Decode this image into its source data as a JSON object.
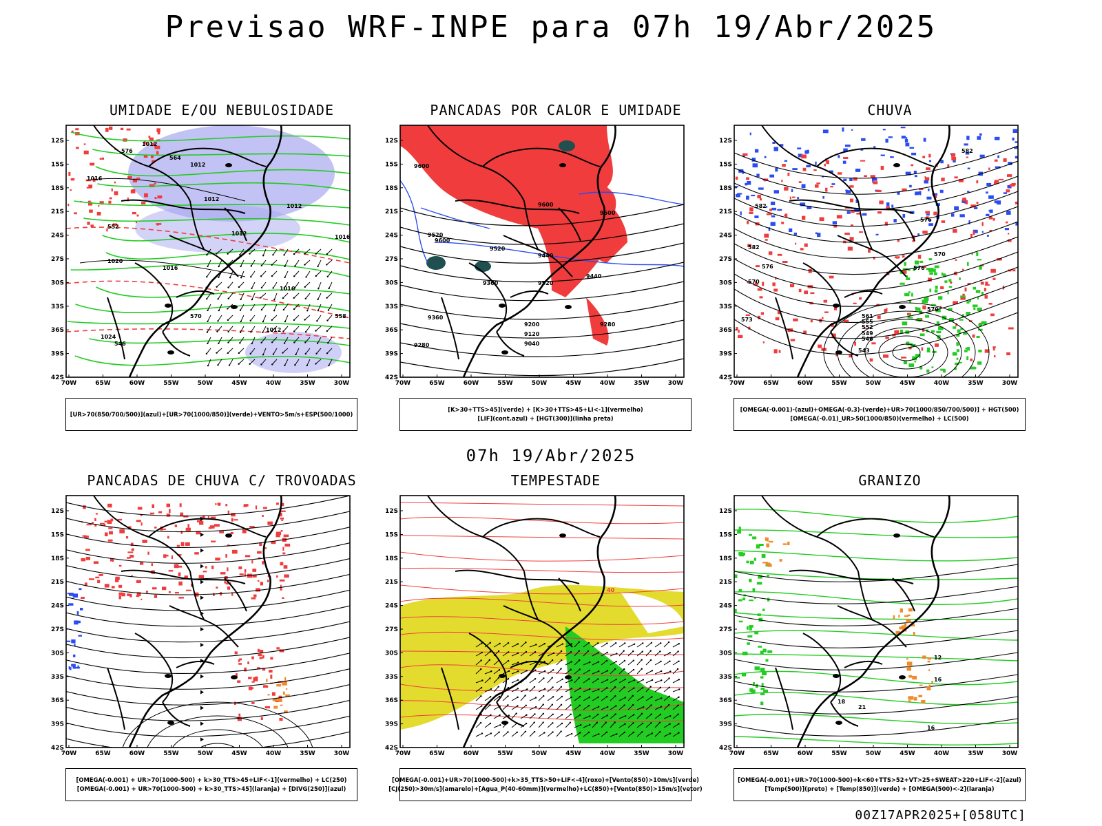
{
  "title": "Previsao WRF-INPE  para 07h 19/Abr/2025",
  "mid_label": "07h 19/Abr/2025",
  "footer": "00Z17APR2025+[058UTC]",
  "axes": {
    "lat_labels": [
      "12S",
      "15S",
      "18S",
      "21S",
      "24S",
      "27S",
      "30S",
      "33S",
      "36S",
      "39S",
      "42S"
    ],
    "lon_labels": [
      "70W",
      "65W",
      "60W",
      "55W",
      "50W",
      "45W",
      "40W",
      "35W",
      "30W"
    ]
  },
  "colors": {
    "red": "#f03c3c",
    "blue": "#2a4cf0",
    "green": "#22cc22",
    "lavender": "#a8a8f0",
    "teal": "#1f4f4f",
    "yellow": "#e3dc2e",
    "orange": "#f08a2a",
    "purple": "#a020f0"
  },
  "panels": [
    {
      "title": "UMIDADE E/OU NEBULOSIDADE",
      "caption": [
        "[UR>70(850/700/500)](azul)+[UR>70(1000/850)](verde)+VENTO>5m/s+ESP(500/1000)"
      ],
      "contour_labels": [
        "1012",
        "1012",
        "1016",
        "1012",
        "1020",
        "1016",
        "1012",
        "1012",
        "1016",
        "1024",
        "1016",
        "1012",
        "576",
        "564",
        "552",
        "546",
        "570",
        "558"
      ]
    },
    {
      "title": "PANCADAS POR CALOR E UMIDADE",
      "caption": [
        "[K>30+TTS>45](verde) + [K>30+TTS>45+LI<-1](vermelho)",
        "[LIF](cont.azul) + [HGT(300)](linha preta)"
      ],
      "contour_labels": [
        "9600",
        "9520",
        "9600",
        "9600",
        "9520",
        "9440",
        "9440",
        "9520",
        "9360",
        "9360",
        "9280",
        "9200",
        "9120",
        "9040",
        "9280",
        "9600"
      ]
    },
    {
      "title": "CHUVA",
      "caption": [
        "[OMEGA(-0.001)-(azul)+OMEGA(-0.3)-(verde)+UR>70(1000/850/700/500)] + HGT(500)",
        "[OMEGA(-0.01)_UR>50(1000/850)(vermelho) + LC(500)"
      ],
      "contour_labels": [
        "582",
        "582",
        "576",
        "570",
        "573",
        "576",
        "570",
        "561",
        "555",
        "552",
        "549",
        "546",
        "543",
        "582",
        "576",
        "570"
      ]
    },
    {
      "title": "PANCADAS DE CHUVA C/ TROVOADAS",
      "caption": [
        "[OMEGA(-0.001) + UR>70(1000-500) + k>30_TTS>45+LIF<-1](vermelho) + LC(250)",
        "[OMEGA(-0.001) + UR>70(1000-500) + k>30_TTS>45](laranja) + [DIVG(250)](azul)"
      ],
      "contour_labels": []
    },
    {
      "title": "TEMPESTADE",
      "caption": [
        "[OMEGA(-0.001)+UR>70(1000-500)+k>35_TTS>50+LIF<-4](roxo)+[Vento(850)>10m/s](verde)",
        "[CJ(250)>30m/s](amarelo)+[Agua_P(40-60mm)](vermelho)+LC(850)+[Vento(850)>15m/s](vetor)"
      ],
      "contour_labels": [
        "40"
      ]
    },
    {
      "title": "GRANIZO",
      "caption": [
        "[OMEGA(-0.001)+UR>70(1000-500)+k<60+TTS>52+VT>25+SWEAT>220+LIF<-2](azul)",
        "[Temp(500)](preto) + [Temp(850)](verde) + [OMEGA(500)<-2](laranja)"
      ],
      "contour_labels": [
        "12",
        "16",
        "18",
        "21",
        "16"
      ]
    }
  ]
}
